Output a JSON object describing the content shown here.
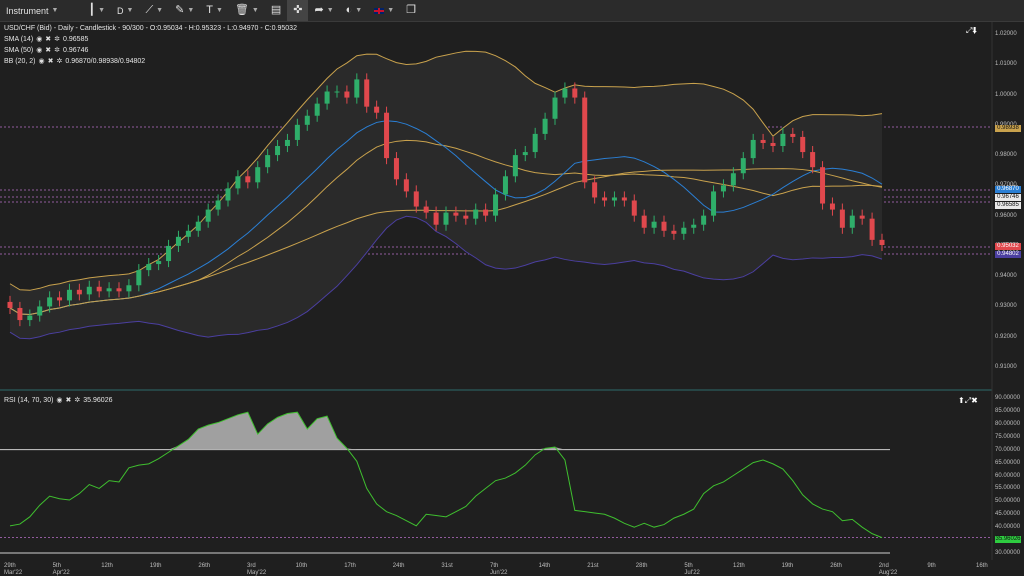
{
  "toolbar": {
    "instrument": "Instrument",
    "period": "D",
    "flag_icon": "uk-flag-icon"
  },
  "main_legend": {
    "title": "USD/CHF (Bid) - Daily - Candlestick - 90/300 - O:0.95034 - H:0.95323 - L:0.94970 - C:0.95032",
    "sma14_label": "SMA (14)",
    "sma14_value": "0.96585",
    "sma50_label": "SMA (50)",
    "sma50_value": "0.96746",
    "bb_label": "BB (20, 2)",
    "bb_value": "0.96870/0.98938/0.94802"
  },
  "rsi_legend": {
    "label": "RSI (14, 70, 30)",
    "value": "35.96026"
  },
  "price_axis": [
    "1.02000",
    "1.01000",
    "1.00000",
    "0.99000",
    "0.98000",
    "0.97000",
    "0.96000",
    "0.95000",
    "0.94000",
    "0.93000",
    "0.92000",
    "0.91000"
  ],
  "rsi_axis": [
    "90.00000",
    "85.00000",
    "80.00000",
    "75.00000",
    "70.00000",
    "65.00000",
    "60.00000",
    "55.00000",
    "50.00000",
    "45.00000",
    "40.00000",
    "35.00000",
    "30.00000"
  ],
  "price_tags": {
    "bb_upper": "0.98938",
    "bb_mid": "0.96870",
    "sma50": "0.96746",
    "sma14": "0.96585",
    "close": "0.95032",
    "bb_lower": "0.94802",
    "rsi": "35.96026"
  },
  "x_labels": [
    {
      "t": "29th",
      "d": "Mar'22"
    },
    {
      "t": "5th",
      "d": "Apr'22"
    },
    {
      "t": "12th",
      "d": ""
    },
    {
      "t": "19th",
      "d": ""
    },
    {
      "t": "26th",
      "d": ""
    },
    {
      "t": "3rd",
      "d": "May'22"
    },
    {
      "t": "10th",
      "d": ""
    },
    {
      "t": "17th",
      "d": ""
    },
    {
      "t": "24th",
      "d": ""
    },
    {
      "t": "31st",
      "d": ""
    },
    {
      "t": "7th",
      "d": "Jun'22"
    },
    {
      "t": "14th",
      "d": ""
    },
    {
      "t": "21st",
      "d": ""
    },
    {
      "t": "28th",
      "d": ""
    },
    {
      "t": "5th",
      "d": "Jul'22"
    },
    {
      "t": "12th",
      "d": ""
    },
    {
      "t": "19th",
      "d": ""
    },
    {
      "t": "26th",
      "d": ""
    },
    {
      "t": "2nd",
      "d": "Aug'22"
    },
    {
      "t": "9th",
      "d": ""
    },
    {
      "t": "16th",
      "d": ""
    }
  ],
  "colors": {
    "up": "#2fae6a",
    "down": "#e0484d",
    "sma14": "#2a7fd4",
    "sma50": "#c9a24d",
    "bb": "#4b3fa0",
    "bb_band": "#c9a24d"
  },
  "chart_data": {
    "type": "candlestick",
    "closes": [
      0.9295,
      0.9255,
      0.927,
      0.93,
      0.933,
      0.932,
      0.9355,
      0.934,
      0.9365,
      0.935,
      0.936,
      0.935,
      0.937,
      0.942,
      0.944,
      0.945,
      0.95,
      0.953,
      0.955,
      0.958,
      0.962,
      0.965,
      0.969,
      0.973,
      0.971,
      0.976,
      0.98,
      0.983,
      0.985,
      0.99,
      0.993,
      0.997,
      1.001,
      1.001,
      0.999,
      1.005,
      0.996,
      0.994,
      0.979,
      0.972,
      0.968,
      0.963,
      0.961,
      0.957,
      0.961,
      0.96,
      0.959,
      0.962,
      0.96,
      0.967,
      0.973,
      0.98,
      0.981,
      0.987,
      0.992,
      0.999,
      1.002,
      0.999,
      0.971,
      0.966,
      0.965,
      0.966,
      0.965,
      0.96,
      0.956,
      0.958,
      0.955,
      0.954,
      0.956,
      0.957,
      0.96,
      0.968,
      0.97,
      0.974,
      0.979,
      0.985,
      0.984,
      0.983,
      0.987,
      0.986,
      0.981,
      0.976,
      0.964,
      0.962,
      0.956,
      0.96,
      0.959,
      0.952,
      0.9503
    ],
    "rsi": [
      40.5,
      41.2,
      44.0,
      48.5,
      52.0,
      51.0,
      50.5,
      53.0,
      56.5,
      55.0,
      58.0,
      57.5,
      63.0,
      64.0,
      64.5,
      66.5,
      69.0,
      71.5,
      74.0,
      78.0,
      79.5,
      80.5,
      82.0,
      83.5,
      84.5,
      76.0,
      80.0,
      82.5,
      84.0,
      84.5,
      78.0,
      82.0,
      83.0,
      74.5,
      70.5,
      65.5,
      55.0,
      49.0,
      46.0,
      44.5,
      42.5,
      40.5,
      45.0,
      44.5,
      44.0,
      46.0,
      48.0,
      52.0,
      55.0,
      58.0,
      59.0,
      61.0,
      64.0,
      68.0,
      70.5,
      71.0,
      66.0,
      46.5,
      46.0,
      45.5,
      45.0,
      43.5,
      41.5,
      40.0,
      41.5,
      40.0,
      41.0,
      43.5,
      45.0,
      47.0,
      53.0,
      56.0,
      57.5,
      60.0,
      62.5,
      65.0,
      66.0,
      64.5,
      62.5,
      58.0,
      52.5,
      49.0,
      47.0,
      46.0,
      42.5,
      43.0,
      40.0,
      37.5,
      35.96
    ]
  }
}
